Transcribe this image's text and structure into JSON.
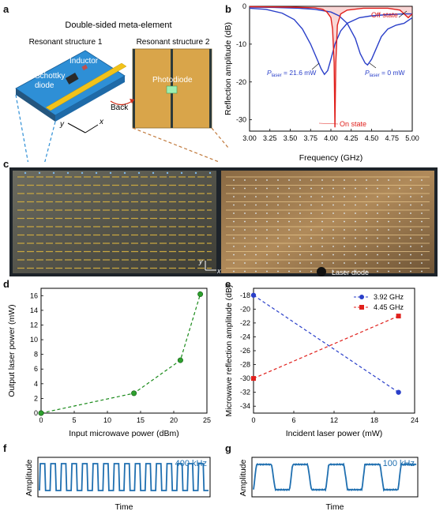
{
  "panels": {
    "a": "a",
    "b": "b",
    "c": "c",
    "d": "d",
    "e": "e",
    "f": "f",
    "g": "g"
  },
  "panel_a": {
    "title": "Double-sided meta-element",
    "structure1": "Resonant structure 1",
    "structure2": "Resonant structure 2",
    "inductor": "Inductor",
    "schottky_line1": "Schottky",
    "schottky_line2": "diode",
    "photodiode": "Photodiode",
    "back": "Back",
    "axis_x": "x",
    "axis_y": "y"
  },
  "panel_c": {
    "laser_diode": "Laser diode",
    "axis_x": "x",
    "axis_y": "y"
  },
  "colors": {
    "blue_line": "#2a3fc9",
    "red_line": "#e0201c",
    "green_line": "#1a8a1a",
    "wave_blue": "#1f6fb0",
    "substrate_blue": "#2e8fd6",
    "copper": "#d9a54a"
  },
  "chart_data": [
    {
      "id": "b",
      "type": "line",
      "xlabel": "Frequency (GHz)",
      "ylabel": "Reflection amplitude (dB)",
      "xlim": [
        3.0,
        5.0
      ],
      "ylim": [
        -33,
        0
      ],
      "xticks": [
        "3.00",
        "3.25",
        "3.50",
        "3.75",
        "4.00",
        "4.25",
        "4.50",
        "4.75",
        "5.00"
      ],
      "yticks": [
        "0",
        "-10",
        "-20",
        "-30"
      ],
      "annotations": {
        "off_state": "Off state",
        "on_state": "On state",
        "p_label": "P",
        "p_sub": "laser",
        "p_laser_high": " = 21.6 mW",
        "p_laser_zero": " = 0 mW"
      },
      "series": [
        {
          "color": "#2a3fc9",
          "x": [
            3.0,
            3.2,
            3.4,
            3.55,
            3.65,
            3.75,
            3.83,
            3.88,
            3.92,
            3.96,
            4.0,
            4.05,
            4.12,
            4.2,
            4.35,
            4.5,
            4.7,
            4.9,
            5.0
          ],
          "y": [
            -0.5,
            -0.8,
            -1.8,
            -3.5,
            -6,
            -10,
            -14,
            -16.5,
            -18,
            -17,
            -14,
            -10,
            -6.5,
            -4.5,
            -3,
            -2.5,
            -2.2,
            -2,
            -2
          ]
        },
        {
          "color": "#2a3fc9",
          "x": [
            3.0,
            3.3,
            3.6,
            3.8,
            4.0,
            4.1,
            4.2,
            4.3,
            4.36,
            4.42,
            4.45,
            4.5,
            4.56,
            4.62,
            4.7,
            4.8,
            4.9,
            5.0
          ],
          "y": [
            -0.2,
            -0.3,
            -0.5,
            -0.8,
            -1.5,
            -2.5,
            -4.5,
            -8.5,
            -12.5,
            -15,
            -15.5,
            -14,
            -11,
            -8,
            -6,
            -5,
            -4.5,
            -3
          ]
        },
        {
          "color": "#e0201c",
          "x": [
            3.0,
            3.5,
            3.8,
            3.9,
            3.95,
            4.0,
            4.02,
            4.04,
            4.05,
            4.06,
            4.08,
            4.12,
            4.2,
            4.4,
            4.7,
            4.85,
            4.9,
            4.95,
            5.0
          ],
          "y": [
            -0.1,
            -0.2,
            -0.4,
            -0.8,
            -1.5,
            -3,
            -6,
            -15,
            -32,
            -15,
            -5,
            -2,
            -1,
            -0.5,
            -0.5,
            -1,
            -2,
            -3,
            -2
          ]
        }
      ]
    },
    {
      "id": "d",
      "type": "line",
      "xlabel": "Input microwave power (dBm)",
      "ylabel": "Output laser power (mW)",
      "xlim": [
        0,
        25
      ],
      "ylim": [
        0,
        17
      ],
      "xticks": [
        "0",
        "5",
        "10",
        "15",
        "20",
        "25"
      ],
      "yticks": [
        "0",
        "2",
        "4",
        "6",
        "8",
        "10",
        "12",
        "14",
        "16"
      ],
      "series": [
        {
          "color": "#1a8a1a",
          "x": [
            0,
            14,
            21,
            24
          ],
          "y": [
            0,
            2.7,
            7.2,
            16.2
          ]
        }
      ]
    },
    {
      "id": "e",
      "type": "line",
      "xlabel": "Incident laser power (mW)",
      "ylabel": "Microwave reflection amplitude (dB)",
      "xlim": [
        0,
        24
      ],
      "ylim": [
        -35,
        -17
      ],
      "xticks": [
        "0",
        "6",
        "12",
        "18",
        "24"
      ],
      "yticks": [
        "-18",
        "-20",
        "-22",
        "-24",
        "-26",
        "-28",
        "-30",
        "-32",
        "-34"
      ],
      "series": [
        {
          "name": "3.92 GHz",
          "color": "#2a3fc9",
          "marker": "circle",
          "x": [
            0,
            21.6
          ],
          "y": [
            -18,
            -32
          ]
        },
        {
          "name": "4.45 GHz",
          "color": "#e0201c",
          "marker": "square",
          "x": [
            0,
            21.6
          ],
          "y": [
            -30,
            -21
          ]
        }
      ]
    },
    {
      "id": "f",
      "type": "line",
      "xlabel": "Time",
      "ylabel": "Amplitude",
      "frequency_label": "400 kHz",
      "periods": 16
    },
    {
      "id": "g",
      "type": "line",
      "xlabel": "Time",
      "ylabel": "Amplitude",
      "frequency_label": "100 kHz",
      "periods": 4.5
    }
  ]
}
